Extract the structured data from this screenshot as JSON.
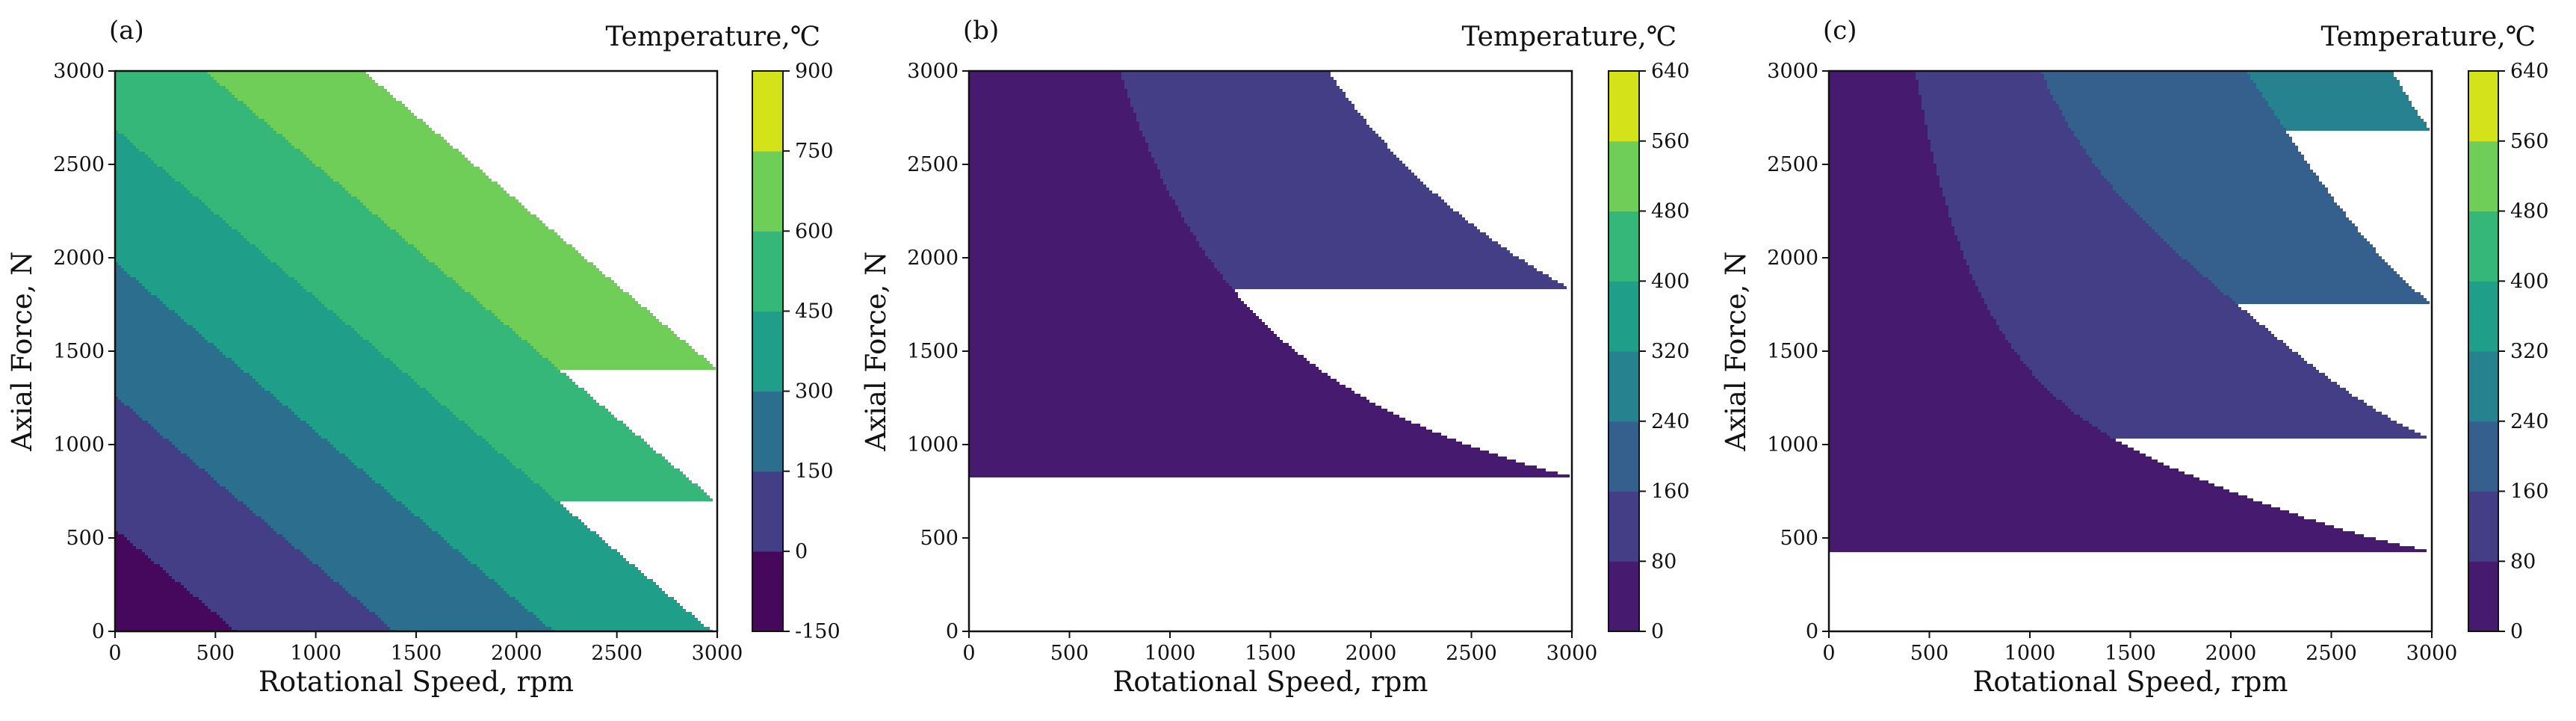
{
  "colors": {
    "levels_a": [
      "#45085c",
      "#433e85",
      "#2c6e8e",
      "#1f9e89",
      "#35b779",
      "#6ece58",
      "#d4e21a"
    ],
    "levels_bc": [
      "#461a6e",
      "#433e85",
      "#355f8d",
      "#26828e",
      "#1f9e89",
      "#35b779",
      "#6ece58",
      "#d4e21a"
    ]
  },
  "chart_data": [
    {
      "type": "contour",
      "panel_label": "(a)",
      "xlabel": "Rotational Speed, rpm",
      "ylabel": "Axial Force, N",
      "colorbar_label": "Temperature,℃",
      "xlim": [
        0,
        3000
      ],
      "ylim": [
        0,
        3000
      ],
      "xticks": [
        "0",
        "500",
        "1000",
        "1500",
        "2000",
        "2500",
        "3000"
      ],
      "yticks": [
        "0",
        "500",
        "1000",
        "1500",
        "2000",
        "2500",
        "3000"
      ],
      "levels": [
        -150,
        0,
        150,
        300,
        450,
        600,
        750,
        900
      ],
      "colorbar_ticks": [
        "-150",
        "0",
        "150",
        "300",
        "450",
        "600",
        "750",
        "900"
      ],
      "model": {
        "kind": "linear",
        "t0": -115,
        "ax": 0.19,
        "ay": 0.21
      },
      "grid": false
    },
    {
      "type": "contour",
      "panel_label": "(b)",
      "xlabel": "Rotational Speed, rpm",
      "ylabel": "Axial Force, N",
      "colorbar_label": "Temperature,℃",
      "xlim": [
        0,
        3000
      ],
      "ylim": [
        0,
        3000
      ],
      "xticks": [
        "0",
        "500",
        "1000",
        "1500",
        "2000",
        "2500",
        "3000"
      ],
      "yticks": [
        "0",
        "500",
        "1000",
        "1500",
        "2000",
        "2500",
        "3000"
      ],
      "levels": [
        0,
        80,
        160,
        240,
        320,
        400,
        480,
        560,
        640
      ],
      "colorbar_ticks": [
        "0",
        "80",
        "160",
        "240",
        "320",
        "400",
        "480",
        "560",
        "640"
      ],
      "model": {
        "kind": "product",
        "x0": 145,
        "y0": 40,
        "k": 20430000,
        "dip": 0
      },
      "grid": false
    },
    {
      "type": "contour",
      "panel_label": "(c)",
      "xlabel": "Rotational Speed, rpm",
      "ylabel": "Axial Force, N",
      "colorbar_label": "Temperature,℃",
      "xlim": [
        0,
        3000
      ],
      "ylim": [
        0,
        3000
      ],
      "xticks": [
        "0",
        "500",
        "1000",
        "1500",
        "2000",
        "2500",
        "3000"
      ],
      "yticks": [
        "0",
        "500",
        "1000",
        "1500",
        "2000",
        "2500",
        "3000"
      ],
      "levels": [
        0,
        80,
        160,
        240,
        320,
        400,
        480,
        560,
        640
      ],
      "colorbar_ticks": [
        "0",
        "80",
        "160",
        "240",
        "320",
        "400",
        "480",
        "560",
        "640"
      ],
      "model": {
        "kind": "product",
        "x0": 60,
        "y0": 80,
        "k": 11200000,
        "dip": 45
      },
      "grid": false
    }
  ]
}
